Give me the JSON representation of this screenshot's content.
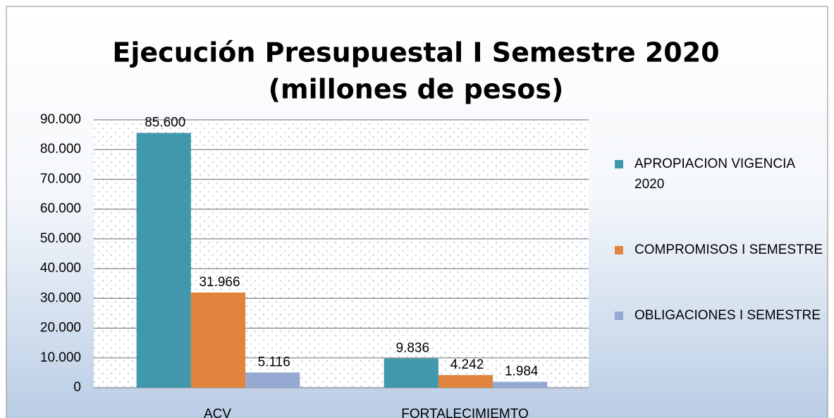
{
  "chart_data": {
    "type": "bar",
    "title": "Ejecución Presupuestal I Semestre 2020",
    "subtitle": "(millones de pesos)",
    "categories": [
      "ACV",
      "FORTALECIMIEMTO"
    ],
    "series": [
      {
        "name": "APROPIACION VIGENCIA 2020",
        "color": "#4198ad",
        "values": [
          85600,
          9836
        ],
        "value_labels": [
          "85.600",
          "9.836"
        ]
      },
      {
        "name": "COMPROMISOS I SEMESTRE",
        "color": "#e0843e",
        "values": [
          31966,
          4242
        ],
        "value_labels": [
          "31.966",
          "4.242"
        ]
      },
      {
        "name": "OBLIGACIONES I SEMESTRE",
        "color": "#96a9d2",
        "values": [
          5116,
          1984
        ],
        "value_labels": [
          "5.116",
          "1.984"
        ]
      }
    ],
    "ylim": [
      0,
      90000
    ],
    "yticks": [
      0,
      {
        "value": 10000,
        "label": "10.000"
      },
      {
        "value": 20000,
        "label": "20.000"
      },
      {
        "value": 30000,
        "label": "30.000"
      },
      {
        "value": 40000,
        "label": "40.000"
      },
      {
        "value": 50000,
        "label": "50.000"
      },
      {
        "value": 60000,
        "label": "60.000"
      },
      {
        "value": 70000,
        "label": "70.000"
      },
      {
        "value": 80000,
        "label": "80.000"
      },
      {
        "value": 90000,
        "label": "90.000"
      }
    ],
    "grid": true,
    "legend": "right"
  }
}
